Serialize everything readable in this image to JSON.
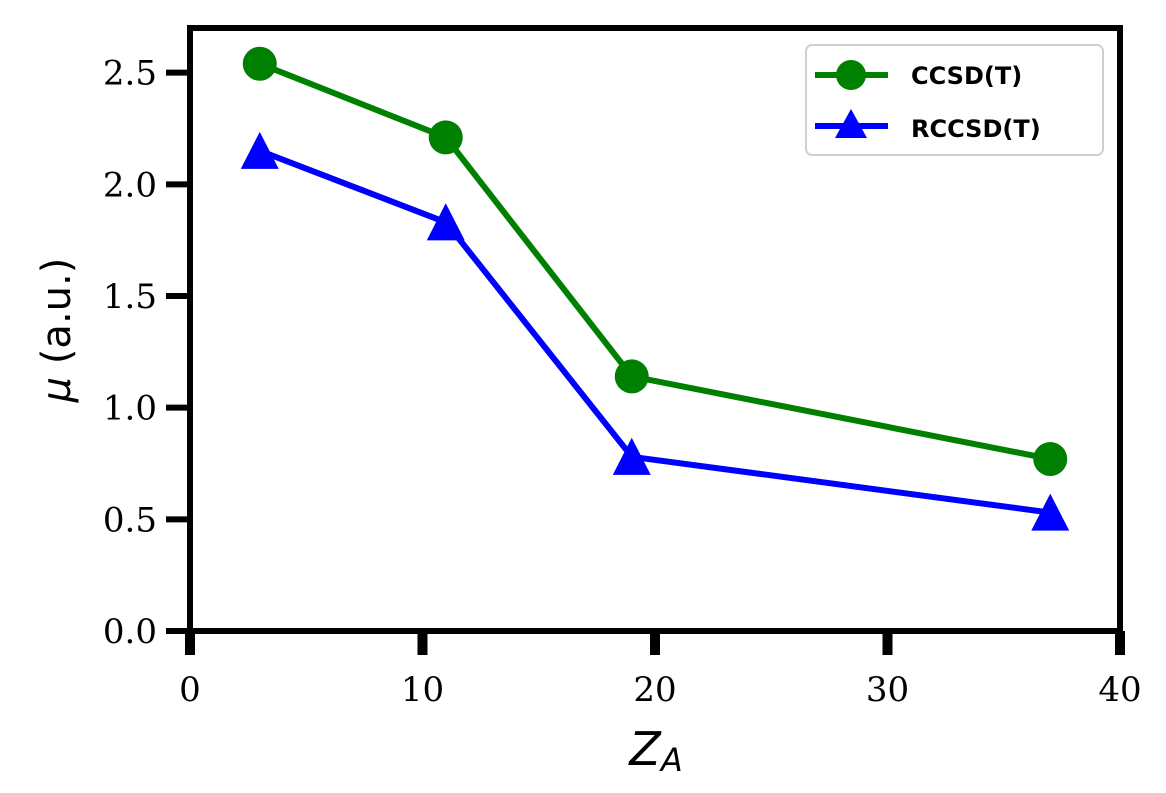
{
  "chart_data": {
    "type": "line",
    "x": [
      3,
      11,
      19,
      37
    ],
    "series": [
      {
        "name": "CCSD(T)",
        "values": [
          2.54,
          2.21,
          1.14,
          0.77
        ],
        "color": "#008000",
        "marker": "circle"
      },
      {
        "name": "RCCSD(T)",
        "values": [
          2.15,
          1.83,
          0.78,
          0.53
        ],
        "color": "#0000ff",
        "marker": "triangle"
      }
    ],
    "xlabel_main": "Z",
    "xlabel_sub": "A",
    "ylabel_symbol": "μ",
    "ylabel_unit": "(a.u.)",
    "xlim": [
      0,
      40
    ],
    "ylim": [
      0,
      2.7
    ],
    "xticks": [
      0,
      10,
      20,
      30,
      40
    ],
    "xtick_labels": [
      "0",
      "10",
      "20",
      "30",
      "40"
    ],
    "yticks": [
      0,
      0.5,
      1.0,
      1.5,
      2.0,
      2.5
    ],
    "ytick_labels": [
      "0.0",
      "0.5",
      "1.0",
      "1.5",
      "2.0",
      "2.5"
    ],
    "grid": false,
    "legend_position": "top-right"
  }
}
